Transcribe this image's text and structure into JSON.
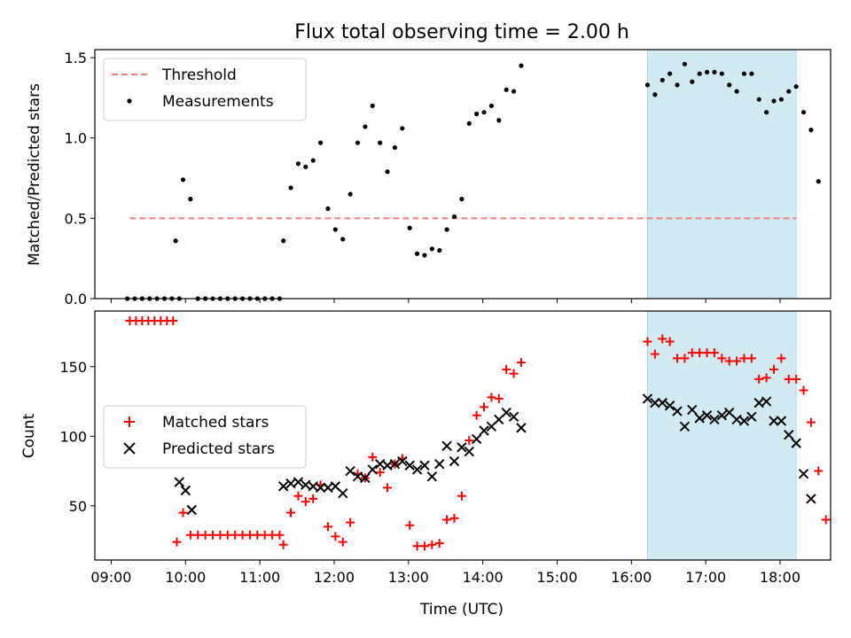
{
  "figure": {
    "title": "Flux total observing time = 2.00 h",
    "xlabel": "Time (UTC)"
  },
  "chart_data": [
    {
      "type": "scatter",
      "ylabel": "Matched/Predicted stars",
      "ylim": [
        0,
        1.55
      ],
      "yticks": [
        0.0,
        0.5,
        1.0,
        1.5
      ],
      "ytick_labels": [
        "0.0",
        "0.5",
        "1.0",
        "1.5"
      ],
      "xlim_hours": [
        8.78,
        18.68
      ],
      "legend_position": "top-left",
      "shaded_span": {
        "start": "16:13",
        "end": "18:13",
        "color": "#add8e6"
      },
      "threshold": {
        "name": "Threshold",
        "value": 0.5,
        "x_start": "09:15",
        "x_end": "18:13",
        "color": "#f08080",
        "style": "dashed"
      },
      "series": [
        {
          "name": "Measurements",
          "color": "#000000",
          "marker": "dot",
          "points": [
            [
              "09:13",
              0
            ],
            [
              "09:19",
              0
            ],
            [
              "09:25",
              0
            ],
            [
              "09:31",
              0
            ],
            [
              "09:37",
              0
            ],
            [
              "09:43",
              0
            ],
            [
              "09:49",
              0
            ],
            [
              "09:55",
              0
            ],
            [
              "09:52",
              0.36
            ],
            [
              "09:58",
              0.74
            ],
            [
              "10:04",
              0.62
            ],
            [
              "10:10",
              0
            ],
            [
              "10:16",
              0
            ],
            [
              "10:22",
              0
            ],
            [
              "10:28",
              0
            ],
            [
              "10:34",
              0
            ],
            [
              "10:40",
              0
            ],
            [
              "10:46",
              0
            ],
            [
              "10:52",
              0
            ],
            [
              "10:58",
              0
            ],
            [
              "11:04",
              0
            ],
            [
              "11:10",
              0
            ],
            [
              "11:16",
              0
            ],
            [
              "11:19",
              0.36
            ],
            [
              "11:25",
              0.69
            ],
            [
              "11:31",
              0.84
            ],
            [
              "11:37",
              0.82
            ],
            [
              "11:43",
              0.86
            ],
            [
              "11:49",
              0.97
            ],
            [
              "11:55",
              0.56
            ],
            [
              "12:01",
              0.43
            ],
            [
              "12:07",
              0.37
            ],
            [
              "12:13",
              0.65
            ],
            [
              "12:19",
              0.97
            ],
            [
              "12:25",
              1.07
            ],
            [
              "12:31",
              1.2
            ],
            [
              "12:37",
              0.97
            ],
            [
              "12:43",
              0.79
            ],
            [
              "12:49",
              0.94
            ],
            [
              "12:55",
              1.06
            ],
            [
              "13:01",
              0.44
            ],
            [
              "13:07",
              0.28
            ],
            [
              "13:13",
              0.27
            ],
            [
              "13:19",
              0.31
            ],
            [
              "13:25",
              0.3
            ],
            [
              "13:31",
              0.43
            ],
            [
              "13:37",
              0.51
            ],
            [
              "13:43",
              0.62
            ],
            [
              "13:49",
              1.09
            ],
            [
              "13:55",
              1.15
            ],
            [
              "14:01",
              1.16
            ],
            [
              "14:07",
              1.2
            ],
            [
              "14:13",
              1.11
            ],
            [
              "14:19",
              1.3
            ],
            [
              "14:25",
              1.29
            ],
            [
              "14:31",
              1.45
            ],
            [
              "16:13",
              1.33
            ],
            [
              "16:19",
              1.27
            ],
            [
              "16:25",
              1.36
            ],
            [
              "16:31",
              1.4
            ],
            [
              "16:37",
              1.33
            ],
            [
              "16:43",
              1.46
            ],
            [
              "16:49",
              1.35
            ],
            [
              "16:55",
              1.4
            ],
            [
              "17:01",
              1.41
            ],
            [
              "17:07",
              1.41
            ],
            [
              "17:13",
              1.4
            ],
            [
              "17:19",
              1.33
            ],
            [
              "17:25",
              1.29
            ],
            [
              "17:31",
              1.4
            ],
            [
              "17:37",
              1.4
            ],
            [
              "17:43",
              1.24
            ],
            [
              "17:49",
              1.16
            ],
            [
              "17:55",
              1.23
            ],
            [
              "18:01",
              1.24
            ],
            [
              "18:07",
              1.29
            ],
            [
              "18:13",
              1.32
            ],
            [
              "18:19",
              1.16
            ],
            [
              "18:25",
              1.05
            ],
            [
              "18:31",
              0.73
            ]
          ]
        }
      ]
    },
    {
      "type": "scatter",
      "ylabel": "Count",
      "ylim": [
        11,
        190
      ],
      "yticks": [
        50,
        100,
        150
      ],
      "ytick_labels": [
        "50",
        "100",
        "150"
      ],
      "legend_position": "center-left",
      "shaded_span": {
        "start": "16:13",
        "end": "18:13",
        "color": "#add8e6"
      },
      "series": [
        {
          "name": "Matched stars",
          "color": "#ff0000",
          "marker": "plus",
          "points": [
            [
              "09:15",
              183
            ],
            [
              "09:20",
              183
            ],
            [
              "09:25",
              183
            ],
            [
              "09:30",
              183
            ],
            [
              "09:35",
              183
            ],
            [
              "09:40",
              183
            ],
            [
              "09:45",
              183
            ],
            [
              "09:50",
              183
            ],
            [
              "09:53",
              24
            ],
            [
              "09:58",
              45
            ],
            [
              "10:04",
              29
            ],
            [
              "10:10",
              29
            ],
            [
              "10:16",
              29
            ],
            [
              "10:22",
              29
            ],
            [
              "10:28",
              29
            ],
            [
              "10:34",
              29
            ],
            [
              "10:40",
              29
            ],
            [
              "10:46",
              29
            ],
            [
              "10:52",
              29
            ],
            [
              "10:58",
              29
            ],
            [
              "11:04",
              29
            ],
            [
              "11:10",
              29
            ],
            [
              "11:16",
              29
            ],
            [
              "11:19",
              22
            ],
            [
              "11:25",
              45
            ],
            [
              "11:31",
              57
            ],
            [
              "11:37",
              53
            ],
            [
              "11:43",
              55
            ],
            [
              "11:49",
              65
            ],
            [
              "11:55",
              35
            ],
            [
              "12:01",
              28
            ],
            [
              "12:07",
              24
            ],
            [
              "12:13",
              38
            ],
            [
              "12:19",
              73
            ],
            [
              "12:25",
              70
            ],
            [
              "12:31",
              85
            ],
            [
              "12:37",
              74
            ],
            [
              "12:43",
              63
            ],
            [
              "12:49",
              80
            ],
            [
              "12:55",
              84
            ],
            [
              "13:01",
              36
            ],
            [
              "13:07",
              21
            ],
            [
              "13:13",
              21
            ],
            [
              "13:19",
              22
            ],
            [
              "13:25",
              23
            ],
            [
              "13:31",
              40
            ],
            [
              "13:37",
              41
            ],
            [
              "13:43",
              57
            ],
            [
              "13:49",
              97
            ],
            [
              "13:55",
              115
            ],
            [
              "14:01",
              121
            ],
            [
              "14:07",
              128
            ],
            [
              "14:13",
              127
            ],
            [
              "14:19",
              148
            ],
            [
              "14:25",
              145
            ],
            [
              "14:31",
              153
            ],
            [
              "16:13",
              168
            ],
            [
              "16:19",
              159
            ],
            [
              "16:25",
              170
            ],
            [
              "16:31",
              168
            ],
            [
              "16:37",
              156
            ],
            [
              "16:43",
              156
            ],
            [
              "16:49",
              160
            ],
            [
              "16:55",
              160
            ],
            [
              "17:01",
              160
            ],
            [
              "17:07",
              160
            ],
            [
              "17:13",
              156
            ],
            [
              "17:19",
              154
            ],
            [
              "17:25",
              154
            ],
            [
              "17:31",
              156
            ],
            [
              "17:37",
              156
            ],
            [
              "17:43",
              141
            ],
            [
              "17:49",
              142
            ],
            [
              "17:55",
              148
            ],
            [
              "18:01",
              156
            ],
            [
              "18:07",
              141
            ],
            [
              "18:13",
              141
            ],
            [
              "18:19",
              133
            ],
            [
              "18:25",
              110
            ],
            [
              "18:31",
              75
            ],
            [
              "18:37",
              40
            ]
          ]
        },
        {
          "name": "Predicted stars",
          "color": "#000000",
          "marker": "x",
          "points": [
            [
              "09:55",
              67
            ],
            [
              "10:00",
              61
            ],
            [
              "10:05",
              47
            ],
            [
              "11:19",
              64
            ],
            [
              "11:25",
              66
            ],
            [
              "11:31",
              67
            ],
            [
              "11:37",
              65
            ],
            [
              "11:43",
              64
            ],
            [
              "11:49",
              63
            ],
            [
              "11:55",
              63
            ],
            [
              "12:01",
              64
            ],
            [
              "12:07",
              59
            ],
            [
              "12:13",
              75
            ],
            [
              "12:19",
              71
            ],
            [
              "12:25",
              70
            ],
            [
              "12:31",
              76
            ],
            [
              "12:37",
              80
            ],
            [
              "12:43",
              79
            ],
            [
              "12:49",
              80
            ],
            [
              "12:55",
              82
            ],
            [
              "13:01",
              79
            ],
            [
              "13:07",
              76
            ],
            [
              "13:13",
              79
            ],
            [
              "13:19",
              71
            ],
            [
              "13:25",
              80
            ],
            [
              "13:31",
              93
            ],
            [
              "13:37",
              82
            ],
            [
              "13:43",
              92
            ],
            [
              "13:49",
              89
            ],
            [
              "13:55",
              98
            ],
            [
              "14:01",
              104
            ],
            [
              "14:07",
              107
            ],
            [
              "14:13",
              112
            ],
            [
              "14:19",
              117
            ],
            [
              "14:25",
              114
            ],
            [
              "14:31",
              106
            ],
            [
              "16:13",
              127
            ],
            [
              "16:19",
              124
            ],
            [
              "16:25",
              124
            ],
            [
              "16:31",
              122
            ],
            [
              "16:37",
              118
            ],
            [
              "16:43",
              107
            ],
            [
              "16:49",
              119
            ],
            [
              "16:55",
              113
            ],
            [
              "17:01",
              115
            ],
            [
              "17:07",
              112
            ],
            [
              "17:13",
              115
            ],
            [
              "17:19",
              117
            ],
            [
              "17:25",
              112
            ],
            [
              "17:31",
              111
            ],
            [
              "17:37",
              114
            ],
            [
              "17:43",
              124
            ],
            [
              "17:49",
              125
            ],
            [
              "17:55",
              111
            ],
            [
              "18:01",
              111
            ],
            [
              "18:07",
              101
            ],
            [
              "18:13",
              95
            ],
            [
              "18:19",
              73
            ],
            [
              "18:25",
              55
            ]
          ]
        }
      ]
    }
  ],
  "x_axis": {
    "ticks": [
      "09:00",
      "10:00",
      "11:00",
      "12:00",
      "13:00",
      "14:00",
      "15:00",
      "16:00",
      "17:00",
      "18:00"
    ]
  }
}
